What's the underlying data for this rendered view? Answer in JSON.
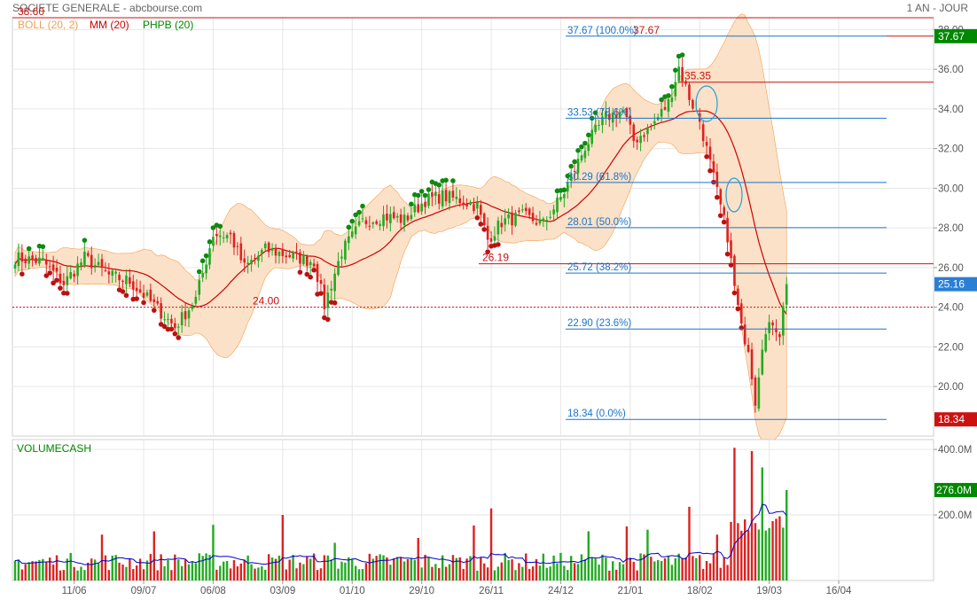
{
  "header": {
    "title": "SOCIETE GENERALE - abcbourse.com",
    "period": "1 AN - JOUR"
  },
  "legend": {
    "items": [
      {
        "label": "BOLL (20, 2)",
        "color": "#f0a050"
      },
      {
        "label": "MM (20)",
        "color": "#d00000"
      },
      {
        "label": "PHPB (20)",
        "color": "#008800"
      }
    ]
  },
  "chart_data": [
    {
      "type": "candlestick",
      "title": "",
      "y_axis": {
        "range": [
          17.5,
          38.6
        ],
        "ticks": [
          20,
          22,
          24,
          26,
          28,
          30,
          32,
          34,
          36,
          38
        ],
        "tick_labels": [
          "20.00",
          "22.00",
          "24.00",
          "26.00",
          "28.00",
          "30.00",
          "32.00",
          "34.00",
          "36.00",
          "38.00"
        ],
        "position": "right"
      },
      "x_axis": {
        "tick_labels": [
          "11/06",
          "09/07",
          "06/08",
          "03/09",
          "01/10",
          "29/10",
          "26/11",
          "24/12",
          "21/01",
          "18/02",
          "19/03",
          "16/04"
        ]
      },
      "grid": true,
      "close_series_anchors": [
        {
          "i": 0,
          "v": 26.5
        },
        {
          "i": 8,
          "v": 26.3
        },
        {
          "i": 14,
          "v": 25.2
        },
        {
          "i": 20,
          "v": 26.5
        },
        {
          "i": 27,
          "v": 25.6
        },
        {
          "i": 33,
          "v": 25.3
        },
        {
          "i": 40,
          "v": 24.1
        },
        {
          "i": 46,
          "v": 23.0
        },
        {
          "i": 52,
          "v": 24.4
        },
        {
          "i": 57,
          "v": 27.7
        },
        {
          "i": 62,
          "v": 27.6
        },
        {
          "i": 66,
          "v": 26.0
        },
        {
          "i": 72,
          "v": 26.9
        },
        {
          "i": 79,
          "v": 26.6
        },
        {
          "i": 86,
          "v": 26.3
        },
        {
          "i": 89,
          "v": 24.1
        },
        {
          "i": 94,
          "v": 26.8
        },
        {
          "i": 100,
          "v": 28.3
        },
        {
          "i": 106,
          "v": 28.6
        },
        {
          "i": 112,
          "v": 28.4
        },
        {
          "i": 118,
          "v": 29.4
        },
        {
          "i": 123,
          "v": 29.6
        },
        {
          "i": 128,
          "v": 29.4
        },
        {
          "i": 133,
          "v": 29.1
        },
        {
          "i": 136,
          "v": 27.4
        },
        {
          "i": 140,
          "v": 28.3
        },
        {
          "i": 146,
          "v": 28.6
        },
        {
          "i": 152,
          "v": 28.2
        },
        {
          "i": 158,
          "v": 29.8
        },
        {
          "i": 164,
          "v": 32.1
        },
        {
          "i": 170,
          "v": 33.6
        },
        {
          "i": 175,
          "v": 33.9
        },
        {
          "i": 178,
          "v": 32.4
        },
        {
          "i": 183,
          "v": 33.1
        },
        {
          "i": 188,
          "v": 34.3
        },
        {
          "i": 191,
          "v": 36.1
        },
        {
          "i": 194,
          "v": 34.6
        },
        {
          "i": 197,
          "v": 33.4
        },
        {
          "i": 201,
          "v": 30.5
        },
        {
          "i": 205,
          "v": 27.6
        },
        {
          "i": 207,
          "v": 25.0
        },
        {
          "i": 209,
          "v": 22.9
        },
        {
          "i": 211,
          "v": 22.0
        },
        {
          "i": 213,
          "v": 19.3
        },
        {
          "i": 215,
          "v": 22.2
        },
        {
          "i": 218,
          "v": 23.3
        },
        {
          "i": 220,
          "v": 22.7
        },
        {
          "i": 222,
          "v": 25.16
        }
      ],
      "last_value": 25.16,
      "moving_average_period": 20,
      "bollinger": {
        "period": 20,
        "std_dev": 2
      }
    },
    {
      "type": "bar",
      "title": "VOLUMECASH",
      "y_axis": {
        "ticks": [
          200,
          400
        ],
        "tick_labels": [
          "200.0M",
          "400.0M"
        ],
        "unit": "M"
      },
      "last_value": 276.0,
      "notable_bars": [
        {
          "i": 25,
          "v": 140
        },
        {
          "i": 40,
          "v": 150
        },
        {
          "i": 57,
          "v": 170
        },
        {
          "i": 77,
          "v": 200
        },
        {
          "i": 92,
          "v": 115
        },
        {
          "i": 116,
          "v": 130
        },
        {
          "i": 132,
          "v": 168
        },
        {
          "i": 137,
          "v": 220
        },
        {
          "i": 165,
          "v": 150
        },
        {
          "i": 176,
          "v": 165
        },
        {
          "i": 182,
          "v": 155
        },
        {
          "i": 194,
          "v": 225
        },
        {
          "i": 202,
          "v": 140
        },
        {
          "i": 207,
          "v": 405
        },
        {
          "i": 212,
          "v": 395
        },
        {
          "i": 215,
          "v": 345
        },
        {
          "i": 222,
          "v": 276
        }
      ]
    }
  ],
  "overlays": {
    "fibonacci": [
      {
        "price": 37.67,
        "label": "37.67  (100.0%)"
      },
      {
        "price": 33.53,
        "label": "33.53  (78.6%)"
      },
      {
        "price": 30.29,
        "label": "30.29  (61.8%)"
      },
      {
        "price": 28.01,
        "label": "28.01  (50.0%)"
      },
      {
        "price": 25.72,
        "label": "25.72  (38.2%)"
      },
      {
        "price": 22.9,
        "label": "22.90  (23.6%)"
      },
      {
        "price": 18.34,
        "label": "18.34  (0.0%)"
      }
    ],
    "level_labels": [
      {
        "price": 38.6,
        "text": "38.60"
      },
      {
        "price": 37.67,
        "text": "37.67"
      },
      {
        "price": 35.35,
        "text": "35.35"
      },
      {
        "price": 26.19,
        "text": "26.19"
      },
      {
        "price": 24.0,
        "text": "24.00"
      }
    ],
    "price_tags": [
      {
        "price": 37.67,
        "text": "37.67",
        "color": "#008800"
      },
      {
        "price": 25.16,
        "text": "25.16",
        "color": "#2a7fd4"
      },
      {
        "price": 18.34,
        "text": "18.34",
        "color": "#cc1111"
      }
    ],
    "volume_tag": {
      "value": 276,
      "text": "276.0M",
      "color": "#008800"
    }
  },
  "colors": {
    "up": "#22aa22",
    "down": "#dd2222",
    "bollinger_fill": "#fbe1c8",
    "bollinger_line": "#f0a050",
    "ma": "#d00000",
    "fib": "#1a74c9",
    "volume_ma": "#0000cc",
    "grid": "#e6e6e6"
  }
}
